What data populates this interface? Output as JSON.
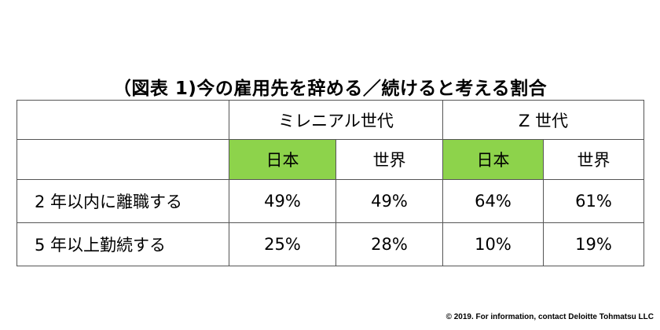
{
  "title": "（図表 1)今の雇用先を辞める／続けると考える割合",
  "table": {
    "groups": [
      "ミレニアル世代",
      "Z 世代"
    ],
    "subheaders": [
      "日本",
      "世界",
      "日本",
      "世界"
    ],
    "highlight_color": "#8dd34b",
    "rows": [
      {
        "label": "2 年以内に離職する",
        "values": [
          "49%",
          "49%",
          "64%",
          "61%"
        ]
      },
      {
        "label": "5 年以上勤続する",
        "values": [
          "25%",
          "28%",
          "10%",
          "19%"
        ]
      }
    ]
  },
  "footer": {
    "copyright": "© 2019. For information, contact Deloitte Tohmatsu LLC"
  }
}
